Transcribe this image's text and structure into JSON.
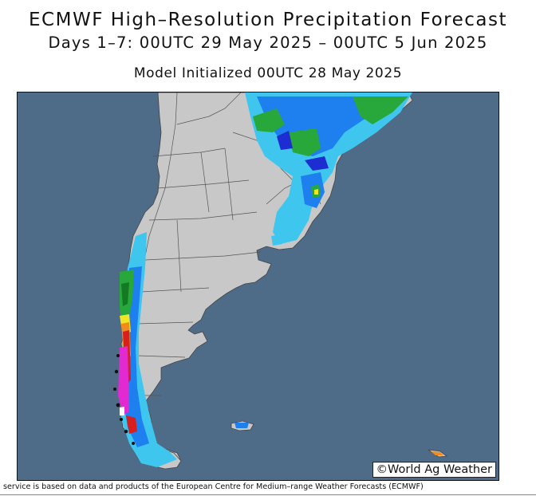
{
  "header": {
    "title": "ECMWF High–Resolution Precipitation Forecast",
    "period": "Days 1–7: 00UTC 29 May 2025 – 00UTC 5 Jun 2025",
    "initialized": "Model Initialized 00UTC 28 May 2025"
  },
  "map": {
    "credit": "©World Ag Weather",
    "colors": {
      "ocean": "#4e6b88",
      "land": "#c8c8c8",
      "light_blue": "#3fc6ef",
      "mid_blue": "#1e7fef",
      "dark_blue": "#1e2dd2",
      "green": "#28a83a",
      "dark_green": "#137a23",
      "yellow": "#f2e624",
      "orange": "#f28a1c",
      "red": "#d81e1e",
      "magenta": "#e12ad2",
      "white": "#ffffff"
    }
  },
  "footer": {
    "text": "service is based on data and products of the European Centre for Medium–range Weather Forecasts (ECMWF)"
  }
}
